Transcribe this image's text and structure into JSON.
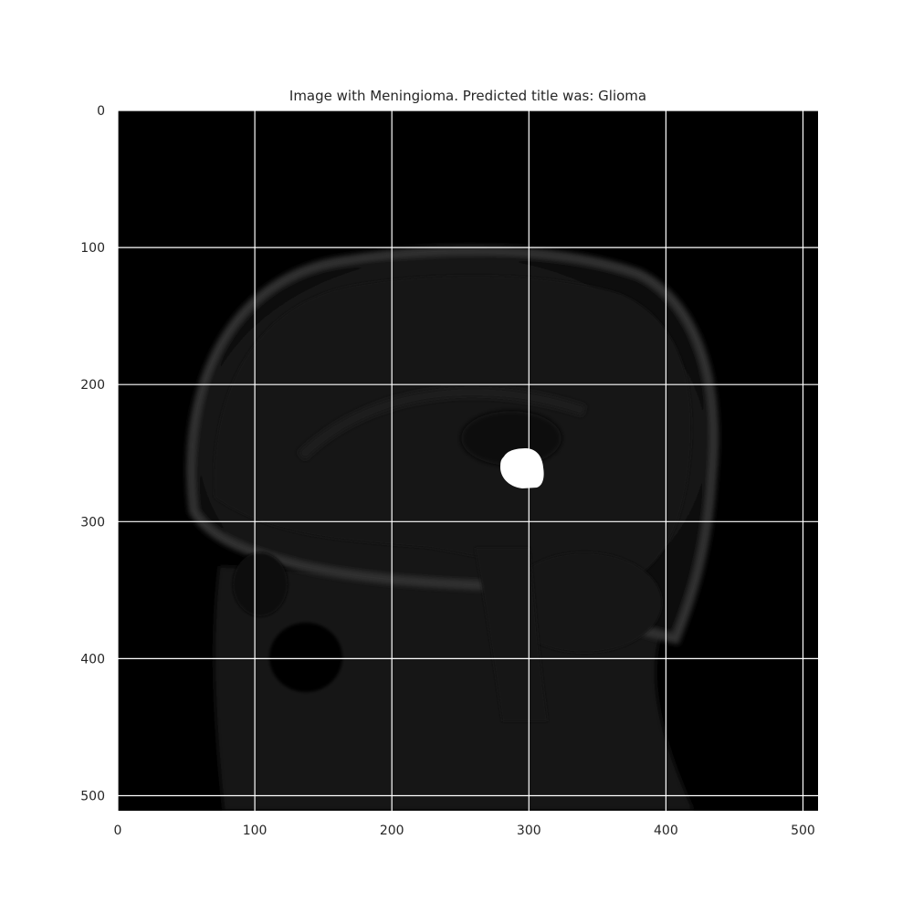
{
  "title": "Image with Meningioma. Predicted title was: Glioma",
  "axes": {
    "x_range": [
      0,
      511
    ],
    "y_range": [
      0,
      511
    ],
    "y_inverted": true,
    "x_ticks": [
      0,
      100,
      200,
      300,
      400,
      500
    ],
    "y_ticks": [
      0,
      100,
      200,
      300,
      400,
      500
    ],
    "grid": true,
    "grid_color": "#ffffff"
  },
  "image": {
    "width": 512,
    "height": 512,
    "colormap": "gray",
    "background": "#000000",
    "content": "sagittal brain MRI slice",
    "tumor_mask_centroid": [
      292,
      260
    ],
    "tumor_mask_color": "#ffffff"
  }
}
